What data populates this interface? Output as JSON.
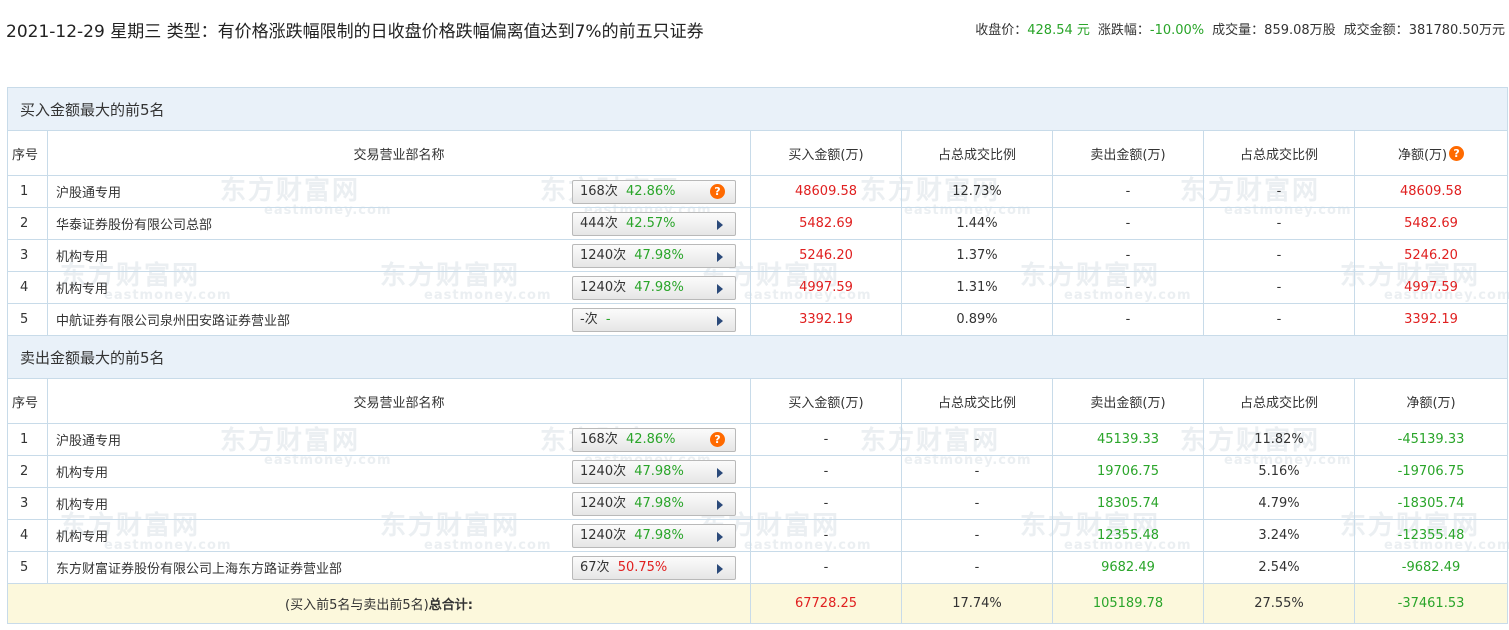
{
  "header": {
    "title": "2021-12-29 星期三 类型：有价格涨跌幅限制的日收盘价格跌幅偏离值达到7%的前五只证券",
    "close_label": "收盘价：",
    "close_value": "428.54 元",
    "change_label": "涨跌幅：",
    "change_value": "-10.00%",
    "volume_label": "成交量：",
    "volume_value": "859.08万股",
    "amount_label": "成交金额：",
    "amount_value": "381780.50万元"
  },
  "watermark": {
    "cn": "东方财富网",
    "en": "eastmoney.com"
  },
  "columns": {
    "seq": "序号",
    "name": "交易营业部名称",
    "buy": "买入金额(万)",
    "buy_ratio": "占总成交比例",
    "sell": "卖出金额(万)",
    "sell_ratio": "占总成交比例",
    "net": "净额(万)"
  },
  "buy_section": {
    "title": "买入金额最大的前5名",
    "rows": [
      {
        "seq": "1",
        "name": "沪股通专用",
        "times": "168次",
        "rate": "42.86%",
        "icon": "question-icon",
        "buy": "48609.58",
        "buy_ratio": "12.73%",
        "sell": "-",
        "sell_ratio": "-",
        "net": "48609.58"
      },
      {
        "seq": "2",
        "name": "华泰证券股份有限公司总部",
        "times": "444次",
        "rate": "42.57%",
        "icon": "arrow-right-icon",
        "buy": "5482.69",
        "buy_ratio": "1.44%",
        "sell": "-",
        "sell_ratio": "-",
        "net": "5482.69"
      },
      {
        "seq": "3",
        "name": "机构专用",
        "times": "1240次",
        "rate": "47.98%",
        "icon": "arrow-right-icon",
        "buy": "5246.20",
        "buy_ratio": "1.37%",
        "sell": "-",
        "sell_ratio": "-",
        "net": "5246.20"
      },
      {
        "seq": "4",
        "name": "机构专用",
        "times": "1240次",
        "rate": "47.98%",
        "icon": "arrow-right-icon",
        "buy": "4997.59",
        "buy_ratio": "1.31%",
        "sell": "-",
        "sell_ratio": "-",
        "net": "4997.59"
      },
      {
        "seq": "5",
        "name": "中航证券有限公司泉州田安路证券营业部",
        "times": "-次",
        "rate": "-",
        "icon": "arrow-right-icon",
        "buy": "3392.19",
        "buy_ratio": "0.89%",
        "sell": "-",
        "sell_ratio": "-",
        "net": "3392.19"
      }
    ]
  },
  "sell_section": {
    "title": "卖出金额最大的前5名",
    "rows": [
      {
        "seq": "1",
        "name": "沪股通专用",
        "times": "168次",
        "rate": "42.86%",
        "icon": "question-icon",
        "buy": "-",
        "buy_ratio": "-",
        "sell": "45139.33",
        "sell_ratio": "11.82%",
        "net": "-45139.33"
      },
      {
        "seq": "2",
        "name": "机构专用",
        "times": "1240次",
        "rate": "47.98%",
        "icon": "arrow-right-icon",
        "buy": "-",
        "buy_ratio": "-",
        "sell": "19706.75",
        "sell_ratio": "5.16%",
        "net": "-19706.75"
      },
      {
        "seq": "3",
        "name": "机构专用",
        "times": "1240次",
        "rate": "47.98%",
        "icon": "arrow-right-icon",
        "buy": "-",
        "buy_ratio": "-",
        "sell": "18305.74",
        "sell_ratio": "4.79%",
        "net": "-18305.74"
      },
      {
        "seq": "4",
        "name": "机构专用",
        "times": "1240次",
        "rate": "47.98%",
        "icon": "arrow-right-icon",
        "buy": "-",
        "buy_ratio": "-",
        "sell": "12355.48",
        "sell_ratio": "3.24%",
        "net": "-12355.48"
      },
      {
        "seq": "5",
        "name": "东方财富证券股份有限公司上海东方路证券营业部",
        "times": "67次",
        "rate": "50.75%",
        "rate_red": true,
        "icon": "arrow-right-icon",
        "buy": "-",
        "buy_ratio": "-",
        "sell": "9682.49",
        "sell_ratio": "2.54%",
        "net": "-9682.49"
      }
    ]
  },
  "total": {
    "label_prefix": "(买入前5名与卖出前5名)",
    "label_bold": "总合计:",
    "buy": "67728.25",
    "buy_ratio": "17.74%",
    "sell": "105189.78",
    "sell_ratio": "27.55%",
    "net": "-37461.53"
  },
  "colors": {
    "up": "#e02020",
    "down": "#2aa52a",
    "section_bg": "#e9f1f9",
    "total_bg": "#fcf8dc",
    "border": "#c8dbe9",
    "help_icon": "#ff6a00"
  }
}
